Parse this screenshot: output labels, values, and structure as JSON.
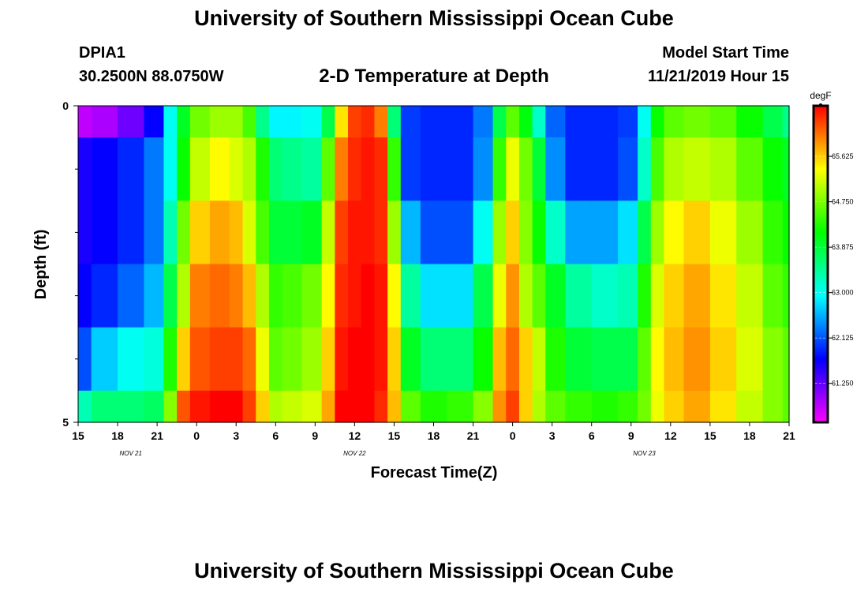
{
  "header": {
    "title": "University of Southern Mississippi Ocean Cube",
    "station": "DPIA1",
    "coords": "30.2500N 88.0750W",
    "subtitle": "2-D Temperature at Depth",
    "start_label": "Model Start Time",
    "start_value": "11/21/2019 Hour 15"
  },
  "footer": {
    "title": "University of Southern Mississippi Ocean Cube"
  },
  "chart_data": {
    "type": "heatmap",
    "title": "2-D Temperature at Depth",
    "xlabel": "Forecast Time(Z)",
    "ylabel": "Depth (ft)",
    "x_tick_labels": [
      "15",
      "18",
      "21",
      "0",
      "3",
      "6",
      "9",
      "12",
      "15",
      "18",
      "21",
      "0",
      "3",
      "6",
      "9",
      "12",
      "15",
      "18",
      "21"
    ],
    "x_date_labels": [
      {
        "label": "NOV  21",
        "hour_index": 4
      },
      {
        "label": "NOV  22",
        "hour_index": 21
      },
      {
        "label": "NOV  23",
        "hour_index": 43
      }
    ],
    "x_hours_range": [
      0,
      54
    ],
    "y_range": [
      0,
      5
    ],
    "y_tick_labels": [
      "0",
      "5"
    ],
    "y_minor_ticks": [
      1,
      2,
      3,
      4
    ],
    "depths": [
      0,
      1,
      2,
      3,
      4,
      5
    ],
    "colorbar": {
      "unit": "degF",
      "min": 60.5,
      "max": 66.6,
      "tick_values": [
        61.25,
        62.125,
        63.0,
        63.875,
        64.75,
        65.625
      ],
      "tick_labels": [
        "61.250",
        "62.125",
        "63.000",
        "63.875",
        "64.750",
        "65.625"
      ]
    },
    "profiles": [
      {
        "hour": 0,
        "temps": [
          60.8,
          61.6,
          61.6,
          61.7,
          62.1,
          63.3
        ]
      },
      {
        "hour": 2,
        "temps": [
          60.9,
          61.7,
          61.7,
          61.9,
          62.7,
          63.6
        ]
      },
      {
        "hour": 4,
        "temps": [
          61.2,
          61.9,
          61.9,
          62.2,
          63.0,
          63.6
        ]
      },
      {
        "hour": 6,
        "temps": [
          61.7,
          62.3,
          62.3,
          62.6,
          63.1,
          63.7
        ]
      },
      {
        "hour": 7,
        "temps": [
          63.0,
          63.0,
          63.3,
          63.8,
          64.3,
          64.8
        ]
      },
      {
        "hour": 8,
        "temps": [
          64.0,
          64.2,
          64.7,
          65.0,
          65.6,
          66.2
        ]
      },
      {
        "hour": 9,
        "temps": [
          64.7,
          65.1,
          65.6,
          66.0,
          66.2,
          66.5
        ]
      },
      {
        "hour": 11,
        "temps": [
          64.9,
          65.4,
          65.8,
          66.1,
          66.3,
          66.6
        ]
      },
      {
        "hour": 12,
        "temps": [
          64.9,
          65.2,
          65.7,
          66.0,
          66.3,
          66.6
        ]
      },
      {
        "hour": 13,
        "temps": [
          64.5,
          65.0,
          65.2,
          65.7,
          66.1,
          66.3
        ]
      },
      {
        "hour": 14,
        "temps": [
          63.5,
          64.3,
          64.5,
          65.0,
          65.3,
          65.6
        ]
      },
      {
        "hour": 15,
        "temps": [
          62.9,
          63.6,
          63.9,
          64.4,
          64.6,
          65.0
        ]
      },
      {
        "hour": 16,
        "temps": [
          62.9,
          63.5,
          63.9,
          64.5,
          64.7,
          65.1
        ]
      },
      {
        "hour": 18,
        "temps": [
          63.0,
          63.4,
          64.0,
          64.7,
          64.9,
          65.2
        ]
      },
      {
        "hour": 19,
        "temps": [
          63.8,
          64.6,
          65.1,
          65.4,
          65.6,
          65.8
        ]
      },
      {
        "hour": 20,
        "temps": [
          65.5,
          66.0,
          66.3,
          66.4,
          66.5,
          66.6
        ]
      },
      {
        "hour": 21,
        "temps": [
          66.3,
          66.4,
          66.5,
          66.5,
          66.6,
          66.6
        ]
      },
      {
        "hour": 22,
        "temps": [
          66.4,
          66.5,
          66.5,
          66.6,
          66.6,
          66.6
        ]
      },
      {
        "hour": 23,
        "temps": [
          66.0,
          66.4,
          66.4,
          66.5,
          66.5,
          66.4
        ]
      },
      {
        "hour": 24,
        "temps": [
          63.6,
          64.4,
          64.9,
          65.4,
          65.6,
          65.7
        ]
      },
      {
        "hour": 25,
        "temps": [
          62.0,
          62.0,
          62.6,
          63.4,
          64.0,
          64.6
        ]
      },
      {
        "hour": 27,
        "temps": [
          61.9,
          61.9,
          62.1,
          62.8,
          63.6,
          64.3
        ]
      },
      {
        "hour": 29,
        "temps": [
          61.9,
          61.9,
          62.1,
          62.8,
          63.6,
          64.4
        ]
      },
      {
        "hour": 31,
        "temps": [
          62.3,
          62.4,
          63.0,
          63.8,
          64.2,
          64.8
        ]
      },
      {
        "hour": 32,
        "temps": [
          63.8,
          64.4,
          64.9,
          65.3,
          65.7,
          65.9
        ]
      },
      {
        "hour": 33,
        "temps": [
          64.6,
          65.3,
          65.6,
          65.9,
          66.1,
          66.3
        ]
      },
      {
        "hour": 34,
        "temps": [
          64.1,
          64.7,
          64.8,
          65.0,
          65.6,
          65.6
        ]
      },
      {
        "hour": 35,
        "temps": [
          63.2,
          63.9,
          64.2,
          64.6,
          65.1,
          65.0
        ]
      },
      {
        "hour": 36,
        "temps": [
          62.2,
          62.4,
          63.2,
          64.0,
          64.3,
          64.6
        ]
      },
      {
        "hour": 38,
        "temps": [
          61.9,
          61.9,
          62.5,
          63.4,
          63.9,
          64.4
        ]
      },
      {
        "hour": 40,
        "temps": [
          61.9,
          61.9,
          62.5,
          63.2,
          63.8,
          64.3
        ]
      },
      {
        "hour": 42,
        "temps": [
          62.0,
          62.1,
          62.8,
          63.3,
          63.8,
          64.4
        ]
      },
      {
        "hour": 43,
        "temps": [
          63.0,
          63.2,
          63.8,
          64.3,
          64.6,
          64.7
        ]
      },
      {
        "hour": 44,
        "temps": [
          64.2,
          64.5,
          64.9,
          65.2,
          65.4,
          65.3
        ]
      },
      {
        "hour": 45,
        "temps": [
          64.6,
          65.0,
          65.4,
          65.6,
          65.7,
          65.6
        ]
      },
      {
        "hour": 47,
        "temps": [
          64.7,
          65.1,
          65.6,
          65.8,
          65.9,
          65.8
        ]
      },
      {
        "hour": 49,
        "temps": [
          64.6,
          65.0,
          65.3,
          65.5,
          65.6,
          65.5
        ]
      },
      {
        "hour": 51,
        "temps": [
          64.2,
          64.6,
          64.9,
          65.1,
          65.2,
          65.1
        ]
      },
      {
        "hour": 53,
        "temps": [
          63.8,
          64.2,
          64.4,
          64.6,
          64.8,
          64.8
        ]
      },
      {
        "hour": 54,
        "temps": [
          63.5,
          64.0,
          64.2,
          64.4,
          64.6,
          64.6
        ]
      }
    ]
  }
}
